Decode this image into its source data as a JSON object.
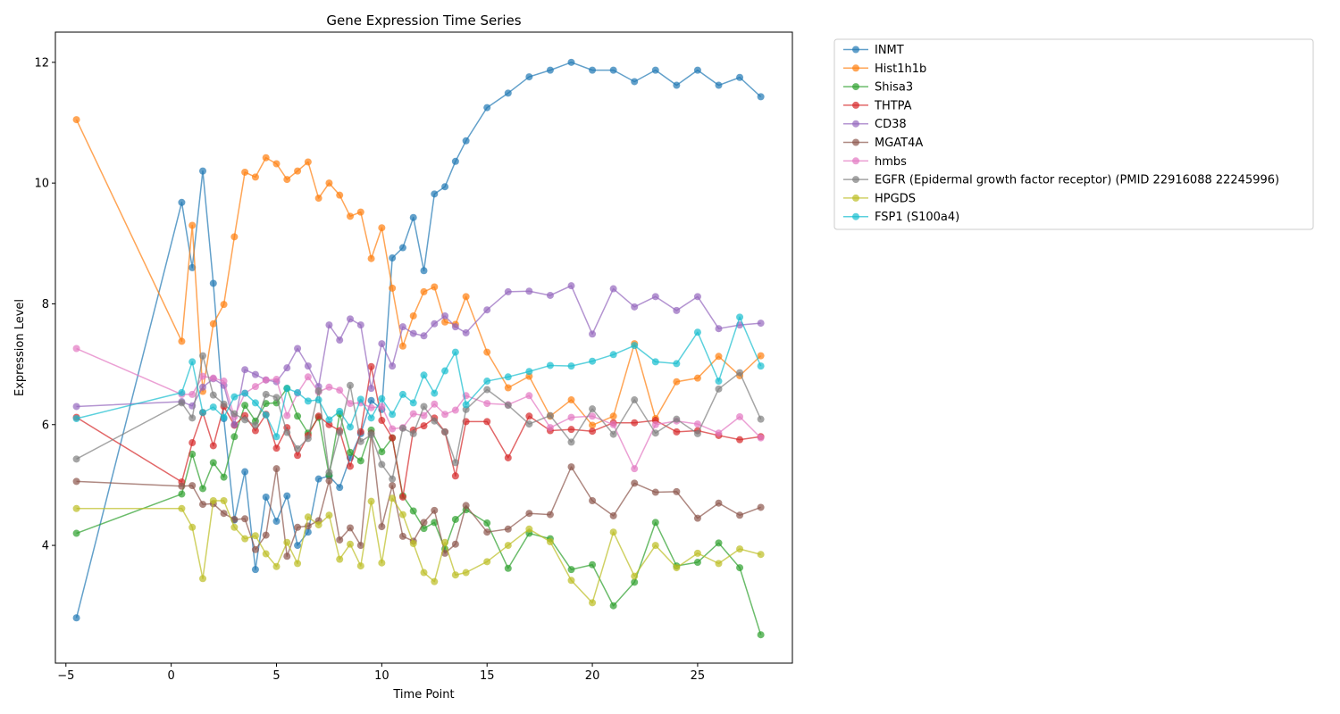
{
  "chart_data": {
    "type": "line",
    "title": "Gene Expression Time Series",
    "xlabel": "Time Point",
    "ylabel": "Expression Level",
    "xlim": [
      -5.5,
      29.5
    ],
    "ylim": [
      2.05,
      12.5
    ],
    "xticks": [
      -5,
      0,
      5,
      10,
      15,
      20,
      25
    ],
    "yticks": [
      4,
      6,
      8,
      10,
      12
    ],
    "grid": false,
    "legend_position": "outside-right-top",
    "x": [
      -4.5,
      0.5,
      1,
      1.5,
      2,
      2.5,
      3,
      3.5,
      4,
      4.5,
      5,
      5.5,
      6,
      6.5,
      7,
      7.5,
      8,
      8.5,
      9,
      9.5,
      10,
      10.5,
      11,
      11.5,
      12,
      12.5,
      13,
      13.5,
      14,
      15,
      16,
      17,
      18,
      19,
      20,
      21,
      22,
      23,
      24,
      25,
      26,
      27,
      28
    ],
    "series": [
      {
        "name": "INMT",
        "color": "#1f77b4",
        "values": [
          2.8,
          9.68,
          8.6,
          10.2,
          8.34,
          6.1,
          4.42,
          5.22,
          3.6,
          4.8,
          4.4,
          4.82,
          4.0,
          4.22,
          5.1,
          5.15,
          4.96,
          5.45,
          5.85,
          6.4,
          6.25,
          8.76,
          8.93,
          9.43,
          8.55,
          9.82,
          9.94,
          10.36,
          10.7,
          11.25,
          11.49,
          11.76,
          11.87,
          12.0,
          11.87,
          11.87,
          11.68,
          11.87,
          11.62,
          11.87,
          11.62,
          11.75,
          11.43
        ]
      },
      {
        "name": "Hist1h1b",
        "color": "#ff7f0e",
        "values": [
          11.05,
          7.38,
          9.3,
          6.55,
          7.67,
          7.99,
          9.11,
          10.18,
          10.1,
          10.42,
          10.32,
          10.06,
          10.2,
          10.35,
          9.75,
          10.0,
          9.8,
          9.45,
          9.52,
          8.75,
          9.26,
          8.26,
          7.3,
          7.8,
          8.2,
          8.28,
          7.7,
          7.66,
          8.12,
          7.2,
          6.61,
          6.8,
          6.14,
          6.41,
          5.99,
          6.14,
          7.34,
          6.1,
          6.71,
          6.77,
          7.13,
          6.81,
          7.14
        ]
      },
      {
        "name": "Shisa3",
        "color": "#2ca02c",
        "values": [
          4.2,
          4.85,
          5.51,
          4.94,
          5.37,
          5.13,
          5.8,
          6.32,
          6.06,
          6.35,
          6.36,
          6.6,
          6.14,
          5.86,
          6.12,
          5.16,
          6.18,
          5.54,
          5.4,
          5.91,
          5.55,
          5.78,
          4.82,
          4.57,
          4.28,
          4.38,
          3.94,
          4.43,
          4.59,
          4.37,
          3.62,
          4.2,
          4.11,
          3.6,
          3.68,
          3.0,
          3.39,
          4.38,
          3.66,
          3.72,
          4.04,
          3.63,
          2.52
        ]
      },
      {
        "name": "THTPA",
        "color": "#d62728",
        "values": [
          6.12,
          5.05,
          5.7,
          6.2,
          5.65,
          6.3,
          5.99,
          6.15,
          5.9,
          6.17,
          5.61,
          5.95,
          5.49,
          5.82,
          6.14,
          6.0,
          5.9,
          5.31,
          5.88,
          6.96,
          6.07,
          5.78,
          4.8,
          5.91,
          5.98,
          6.11,
          5.88,
          5.15,
          6.05,
          6.05,
          5.45,
          6.14,
          5.9,
          5.92,
          5.89,
          6.03,
          6.03,
          6.07,
          5.88,
          5.9,
          5.82,
          5.75,
          5.8
        ]
      },
      {
        "name": "CD38",
        "color": "#9467bd",
        "values": [
          6.3,
          6.38,
          6.31,
          6.62,
          6.76,
          6.65,
          6.0,
          6.91,
          6.83,
          6.74,
          6.71,
          6.94,
          7.26,
          6.97,
          6.63,
          7.65,
          7.4,
          7.75,
          7.65,
          6.6,
          7.34,
          6.97,
          7.62,
          7.51,
          7.47,
          7.67,
          7.8,
          7.62,
          7.52,
          7.9,
          8.2,
          8.21,
          8.14,
          8.3,
          7.5,
          8.25,
          7.95,
          8.12,
          7.89,
          8.12,
          7.59,
          7.65,
          7.68
        ]
      },
      {
        "name": "MGAT4A",
        "color": "#8c564b",
        "values": [
          5.06,
          4.98,
          4.99,
          4.68,
          4.69,
          4.53,
          4.43,
          4.44,
          3.93,
          4.17,
          5.27,
          3.82,
          4.3,
          4.32,
          4.41,
          5.07,
          4.09,
          4.29,
          4.0,
          5.86,
          4.31,
          4.99,
          4.15,
          4.07,
          4.38,
          4.58,
          3.87,
          4.02,
          4.66,
          4.22,
          4.27,
          4.53,
          4.51,
          5.3,
          4.74,
          4.49,
          5.03,
          4.88,
          4.89,
          4.45,
          4.7,
          4.5,
          4.63
        ]
      },
      {
        "name": "hmbs",
        "color": "#e377c2",
        "values": [
          7.26,
          6.5,
          6.5,
          6.8,
          6.77,
          6.72,
          6.13,
          6.52,
          6.63,
          6.74,
          6.75,
          6.15,
          6.52,
          6.79,
          6.54,
          6.62,
          6.57,
          6.35,
          6.36,
          6.28,
          6.3,
          5.93,
          5.95,
          6.18,
          6.15,
          6.34,
          6.17,
          6.24,
          6.48,
          6.35,
          6.33,
          6.48,
          5.95,
          6.12,
          6.14,
          6.0,
          5.27,
          6.0,
          6.06,
          6.01,
          5.86,
          6.13,
          5.78
        ]
      },
      {
        "name": "EGFR (Epidermal growth factor receptor) (PMID 22916088 22245996)",
        "color": "#7f7f7f",
        "values": [
          5.43,
          6.36,
          6.11,
          7.14,
          6.49,
          6.34,
          6.18,
          6.08,
          5.99,
          6.5,
          6.45,
          5.87,
          5.6,
          5.77,
          6.56,
          5.21,
          5.87,
          6.65,
          5.72,
          5.83,
          5.34,
          5.1,
          5.94,
          5.85,
          6.3,
          6.06,
          5.88,
          5.37,
          6.25,
          6.58,
          6.32,
          6.01,
          6.15,
          5.71,
          6.26,
          5.84,
          6.41,
          5.86,
          6.09,
          5.85,
          6.59,
          6.86,
          6.09
        ]
      },
      {
        "name": "HPGDS",
        "color": "#bcbd22",
        "values": [
          4.61,
          4.61,
          4.3,
          3.45,
          4.74,
          4.74,
          4.3,
          4.11,
          4.16,
          3.86,
          3.65,
          4.05,
          3.7,
          4.47,
          4.34,
          4.5,
          3.77,
          4.02,
          3.66,
          4.73,
          3.71,
          4.78,
          4.51,
          4.03,
          3.55,
          3.4,
          4.05,
          3.51,
          3.55,
          3.73,
          4.0,
          4.27,
          4.06,
          3.42,
          3.05,
          4.22,
          3.49,
          4.0,
          3.63,
          3.87,
          3.7,
          3.94,
          3.85
        ]
      },
      {
        "name": "FSP1 (S100a4)",
        "color": "#17becf",
        "values": [
          6.1,
          6.53,
          7.04,
          6.2,
          6.29,
          6.12,
          6.46,
          6.52,
          6.36,
          6.16,
          5.8,
          6.6,
          6.53,
          6.39,
          6.41,
          6.08,
          6.22,
          5.96,
          6.42,
          6.11,
          6.43,
          6.17,
          6.5,
          6.36,
          6.82,
          6.52,
          6.89,
          7.2,
          6.33,
          6.72,
          6.79,
          6.88,
          6.98,
          6.97,
          7.05,
          7.16,
          7.31,
          7.04,
          7.01,
          7.53,
          6.72,
          7.78,
          6.97
        ]
      }
    ]
  }
}
